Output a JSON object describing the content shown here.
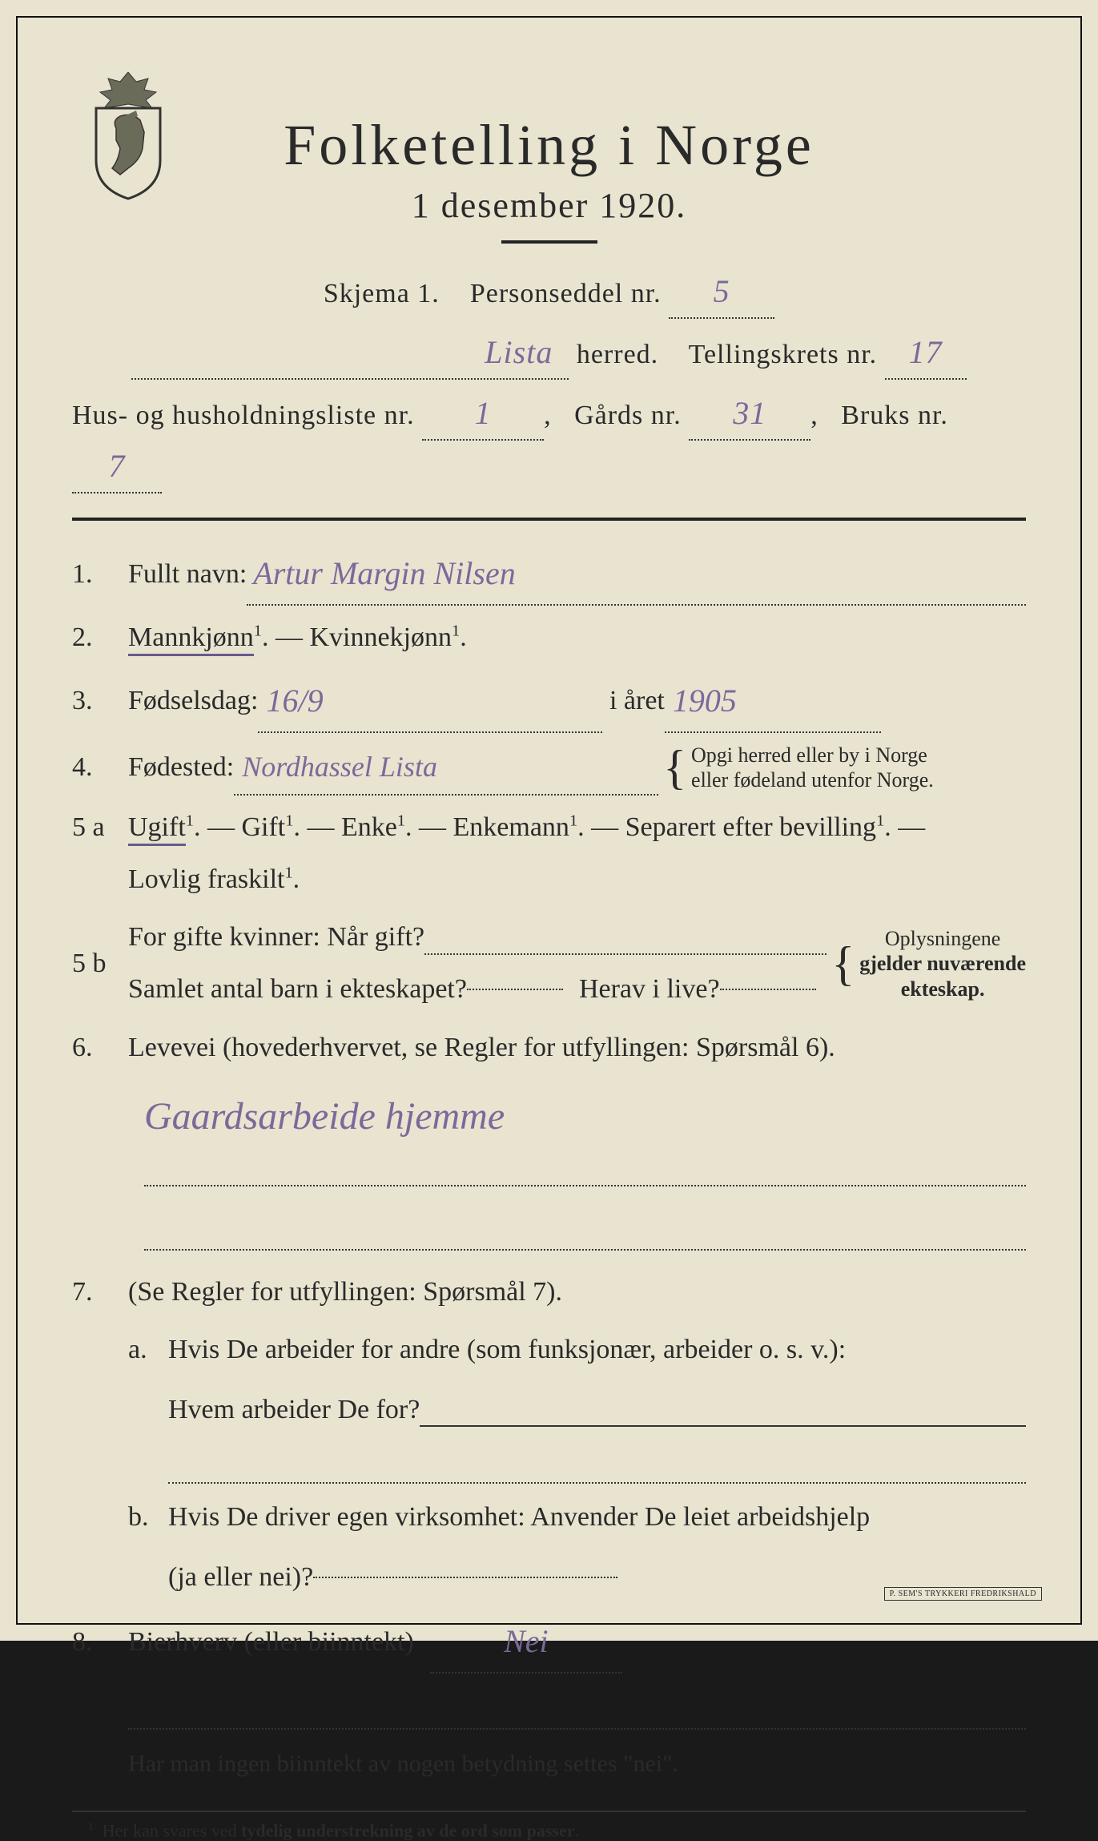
{
  "colors": {
    "paper": "#e8e4d0",
    "ink": "#2a2a2a",
    "handwriting": "#7a6a9a",
    "frame": "#111111"
  },
  "typography": {
    "title_fontsize_pt": 54,
    "subtitle_fontsize_pt": 33,
    "body_fontsize_pt": 26,
    "footnote_fontsize_pt": 18,
    "font_family_print": "Georgia, Times New Roman, serif",
    "font_family_hand": "cursive"
  },
  "header": {
    "title": "Folketelling i Norge",
    "subtitle": "1 desember 1920.",
    "schema_label": "Skjema 1.",
    "person_label": "Personseddel nr.",
    "person_nr": "5",
    "herred_label": "herred.",
    "herred_value": "Lista",
    "krets_label": "Tellingskrets nr.",
    "krets_value": "17",
    "husliste_label": "Hus- og husholdningsliste nr.",
    "husliste_value": "1",
    "gards_label": "Gårds nr.",
    "gards_value": "31",
    "bruks_label": "Bruks nr.",
    "bruks_value": "7"
  },
  "q1": {
    "num": "1.",
    "label": "Fullt navn:",
    "value": "Artur Margin Nilsen"
  },
  "q2": {
    "num": "2.",
    "opt_male": "Mannkjønn",
    "dash": " — ",
    "opt_female": "Kvinnekjønn",
    "sup": "1",
    "selected": "male"
  },
  "q3": {
    "num": "3.",
    "label": "Fødselsdag:",
    "day_value": "16/9",
    "year_label": "i året",
    "year_value": "1905"
  },
  "q4": {
    "num": "4.",
    "label": "Fødested:",
    "value": "Nordhassel Lista",
    "sidenote_line1": "Opgi herred eller by i Norge",
    "sidenote_line2": "eller fødeland utenfor Norge."
  },
  "q5a": {
    "num": "5 a",
    "opts": [
      "Ugift",
      "Gift",
      "Enke",
      "Enkemann",
      "Separert efter bevilling",
      "Lovlig fraskilt"
    ],
    "sup": "1",
    "sep": ". — ",
    "end": ".",
    "selected": "Ugift"
  },
  "q5b": {
    "num": "5 b",
    "line1_a": "For gifte kvinner:  Når gift?",
    "line2_a": "Samlet antal barn i ekteskapet?",
    "line2_b": "Herav i live?",
    "sidenote_line1": "Oplysningene",
    "sidenote_line2": "gjelder nuværende",
    "sidenote_line3": "ekteskap."
  },
  "q6": {
    "num": "6.",
    "label": "Levevei (hovederhvervet, se Regler for utfyllingen:  Spørsmål 6).",
    "value": "Gaardsarbeide hjemme"
  },
  "q7": {
    "num": "7.",
    "label": "(Se Regler for utfyllingen:  Spørsmål 7).",
    "a_letter": "a.",
    "a_line1": "Hvis De arbeider for andre (som funksjonær, arbeider o. s. v.):",
    "a_line2": "Hvem arbeider De for?",
    "b_letter": "b.",
    "b_line1": "Hvis De driver egen virksomhet:  Anvender De leiet arbeidshjelp",
    "b_line2": "(ja eller nei)?"
  },
  "q8": {
    "num": "8.",
    "label": "Bierhverv (eller biinntekt)",
    "value": "Nei"
  },
  "footnote_top": "Har man ingen biinntekt av nogen betydning settes \"nei\".",
  "footnote_bottom_num": "1",
  "footnote_bottom": "Her kan svares ved tydelig understrekning av de ord som passer.",
  "printer": "P. SEM'S TRYKKERI FREDRIKSHALD"
}
